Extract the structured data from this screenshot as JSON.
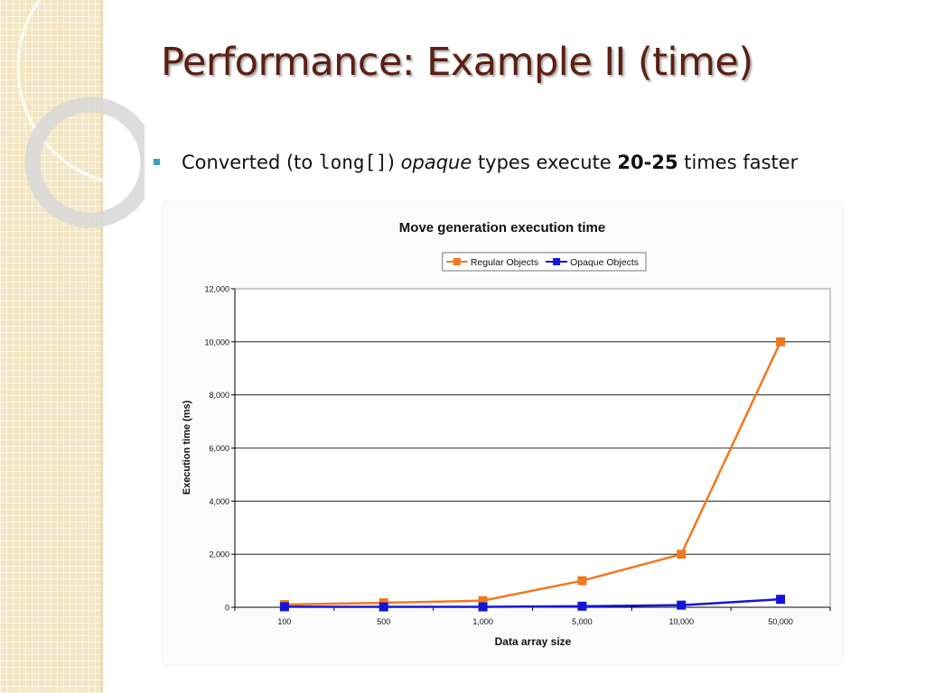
{
  "slide": {
    "title": "Performance: Example II (time)",
    "bullet": {
      "text_1": "Converted (to ",
      "code": "long[]",
      "text_2": ") ",
      "italic": "opaque",
      "text_3": " types execute ",
      "bold": "20-25",
      "text_4": " times faster"
    }
  },
  "chart_data": {
    "type": "line",
    "title": "Move generation execution time",
    "xlabel": "Data array size",
    "ylabel": "Execution time (ms)",
    "categories": [
      "100",
      "500",
      "1,000",
      "5,000",
      "10,000",
      "50,000"
    ],
    "ylim": [
      0,
      12000
    ],
    "yticks": [
      0,
      2000,
      4000,
      6000,
      8000,
      10000,
      12000
    ],
    "ytick_labels": [
      "0",
      "2,000",
      "4,000",
      "6,000",
      "8,000",
      "10,000",
      "12,000"
    ],
    "grid": true,
    "legend_position": "top-right",
    "series": [
      {
        "name": "Regular Objects",
        "color": "#f07820",
        "values": [
          100,
          170,
          250,
          1000,
          2000,
          10000
        ]
      },
      {
        "name": "Opaque Objects",
        "color": "#1515d8",
        "values": [
          20,
          15,
          15,
          40,
          80,
          300
        ]
      }
    ]
  }
}
